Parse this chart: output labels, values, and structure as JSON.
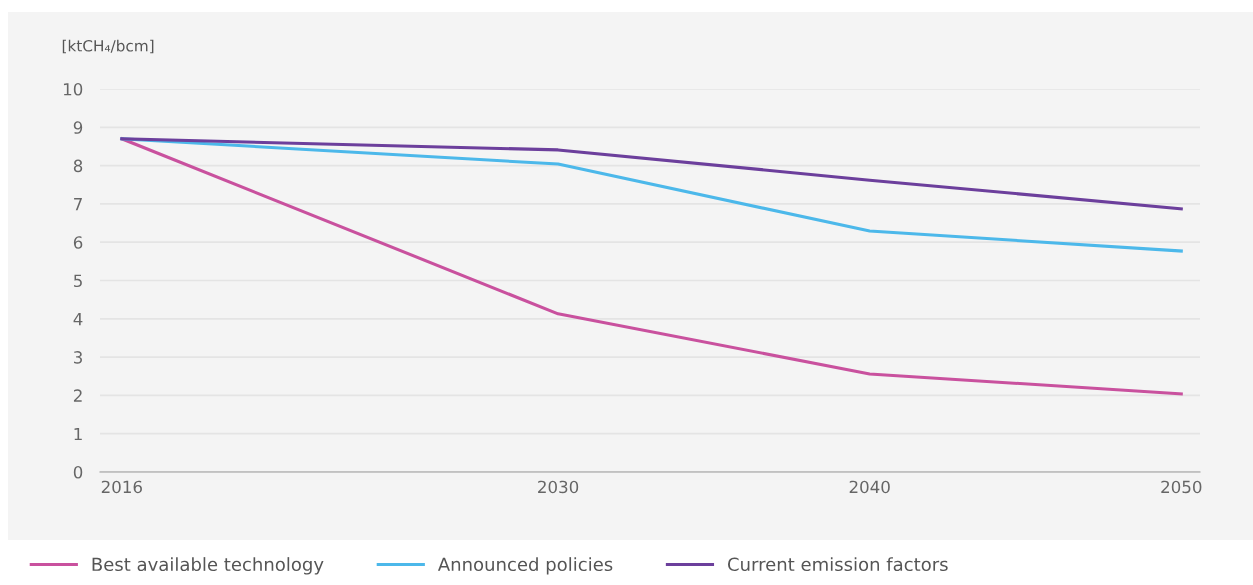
{
  "chart_data": {
    "type": "line",
    "ylabel": "[ktCH₄/bcm]",
    "x": [
      2016,
      2030,
      2040,
      2050
    ],
    "xlim": [
      2015.3,
      2050.6
    ],
    "xticks": [
      2016,
      2030,
      2040,
      2050
    ],
    "ylim": [
      0,
      10
    ],
    "yticks": [
      0,
      1,
      2,
      3,
      4,
      5,
      6,
      7,
      8,
      9,
      10
    ],
    "grid": "y",
    "legend": "bottom",
    "marker": "none",
    "line_style": "solid",
    "series": [
      {
        "name": "Best available technology",
        "color": "#c9519e",
        "values": [
          8.7,
          4.13,
          2.56,
          2.04
        ]
      },
      {
        "name": "Announced policies",
        "color": "#4cb8ea",
        "values": [
          8.7,
          8.04,
          6.29,
          5.77
        ]
      },
      {
        "name": "Current emission factors",
        "color": "#6c3f9c",
        "values": [
          8.7,
          8.41,
          7.62,
          6.87
        ]
      }
    ]
  }
}
